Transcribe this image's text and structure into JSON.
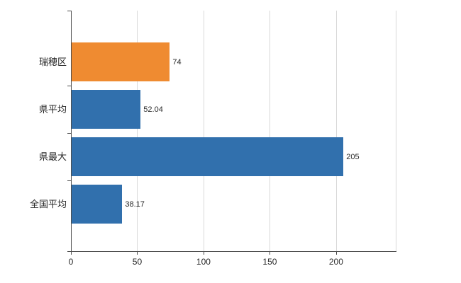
{
  "chart_data": {
    "type": "bar",
    "orientation": "horizontal",
    "title": "",
    "xlabel": "",
    "ylabel": "",
    "categories": [
      "瑞穂区",
      "県平均",
      "県最大",
      "全国平均"
    ],
    "values": [
      74,
      52.04,
      205,
      38.17
    ],
    "value_labels": [
      "74",
      "52.04",
      "205",
      "38.17"
    ],
    "bar_colors": [
      "#ef8b31",
      "#3170ad",
      "#3170ad",
      "#3170ad"
    ],
    "xlim": [
      0,
      245
    ],
    "xticks": [
      0,
      50,
      100,
      150,
      200
    ],
    "xtick_labels": [
      "0",
      "50",
      "100",
      "150",
      "200"
    ],
    "grid": true,
    "legend": "none",
    "colors": {
      "highlight": "#ef8b31",
      "series_default": "#3170ad",
      "grid": "#d9d9d9",
      "axis": "#4d4d4d",
      "text": "#262626"
    }
  }
}
